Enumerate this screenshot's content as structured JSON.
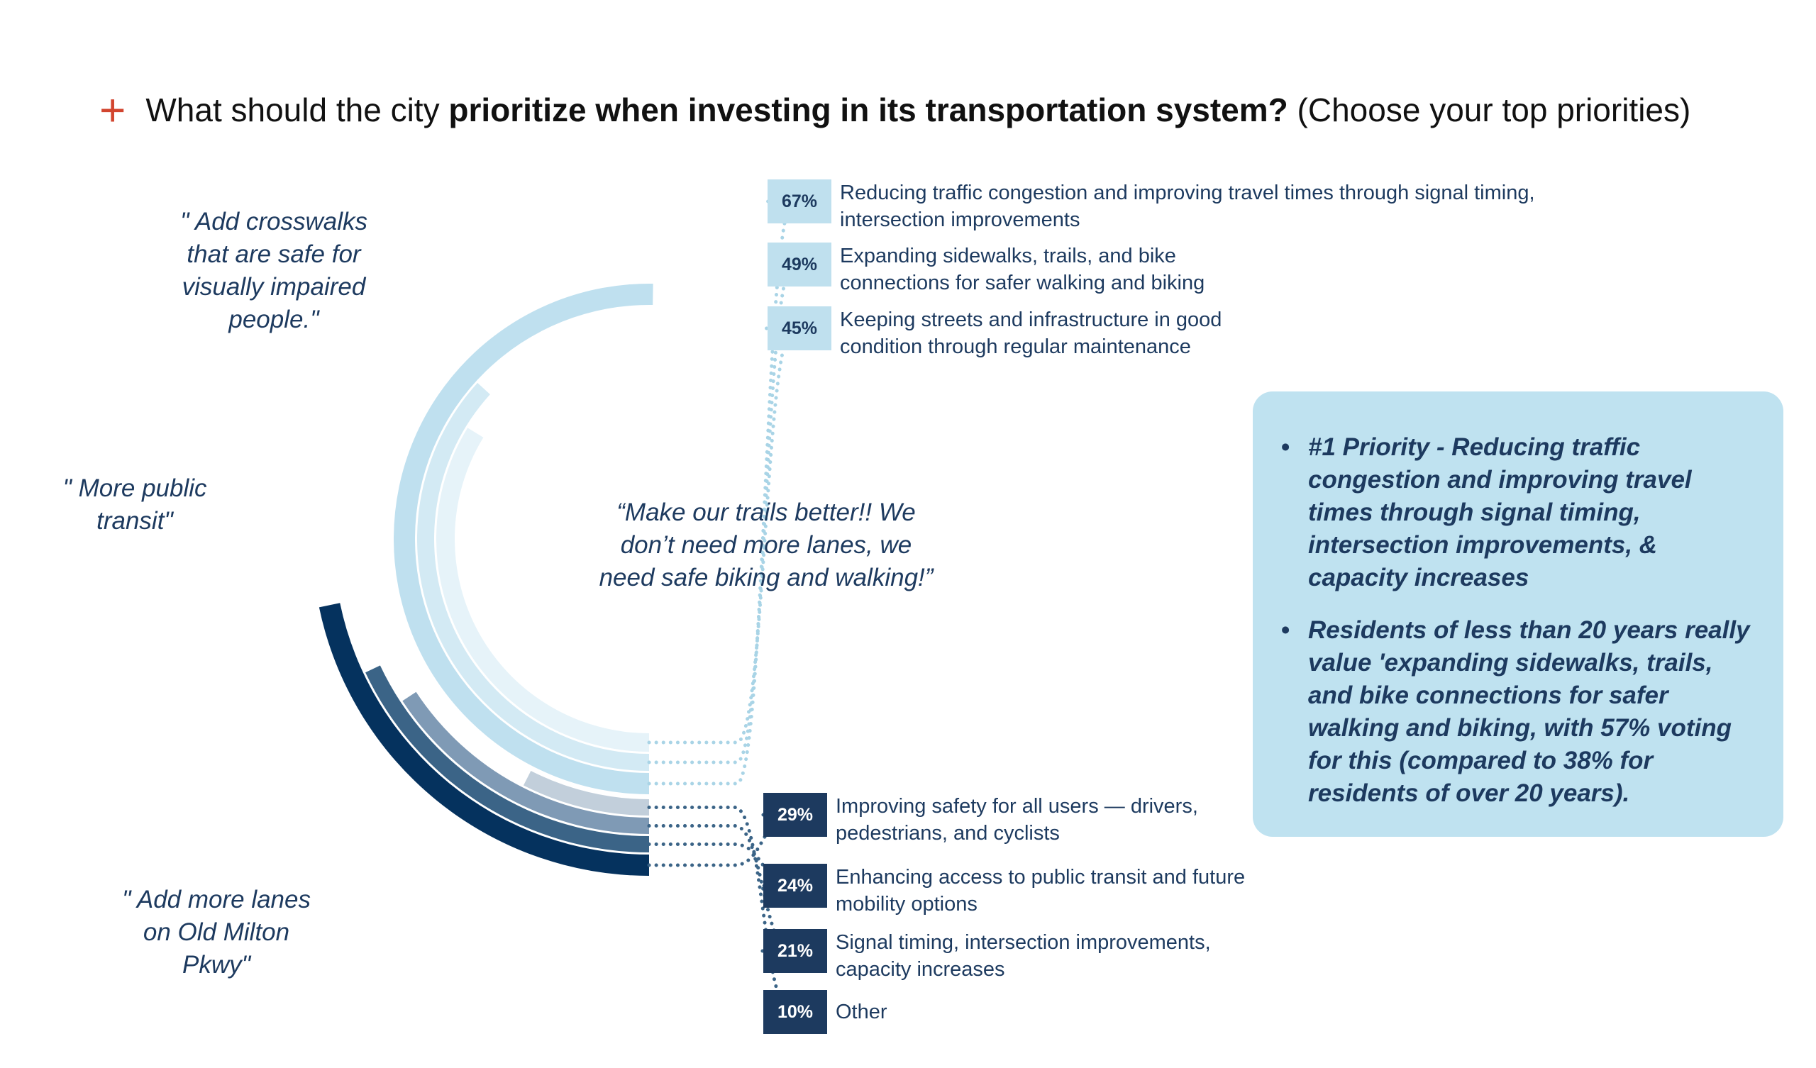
{
  "title": {
    "prefix": "What should the city ",
    "bold": "prioritize when investing in its transportation system?",
    "suffix": " (Choose your top priorities)"
  },
  "quotes": {
    "crosswalks": "\" Add crosswalks that are safe for visually impaired people.\"",
    "transit": "\" More public transit\"",
    "lanes": "\" Add more lanes on Old Milton Pkwy\"",
    "trails": "“Make our trails better!! We don’t need more lanes, we need safe biking and walking!”"
  },
  "chart_data": {
    "type": "radial bar",
    "categories": [
      "Reducing traffic congestion and improving travel times through signal timing, intersection improvements",
      "Expanding sidewalks, trails, and bike connections for safer walking and biking",
      "Keeping streets and infrastructure in good condition through regular maintenance",
      "Improving safety for all users — drivers, pedestrians, and cyclists",
      "Enhancing access to public transit and future mobility options",
      "Signal timing, intersection improvements, capacity increases",
      "Other"
    ],
    "values": [
      67,
      49,
      45,
      29,
      24,
      21,
      10
    ],
    "labels": [
      "67%",
      "49%",
      "45%",
      "29%",
      "24%",
      "21%",
      "10%"
    ],
    "colors": [
      "#bfe0ef",
      "#d3eaf4",
      "#e6f3f9",
      "#05325e",
      "#3b6487",
      "#7f9ab5",
      "#c2cfdb"
    ],
    "unit": "%"
  },
  "callout": {
    "bullet1": "#1 Priority - Reducing traffic congestion and improving travel times through signal timing, intersection improvements, & capacity increases",
    "bullet2": "Residents of less than 20 years really value 'expanding sidewalks, trails, and bike connections for safer walking and biking, with 57% voting for this (compared to 38% for residents of over 20 years)."
  }
}
